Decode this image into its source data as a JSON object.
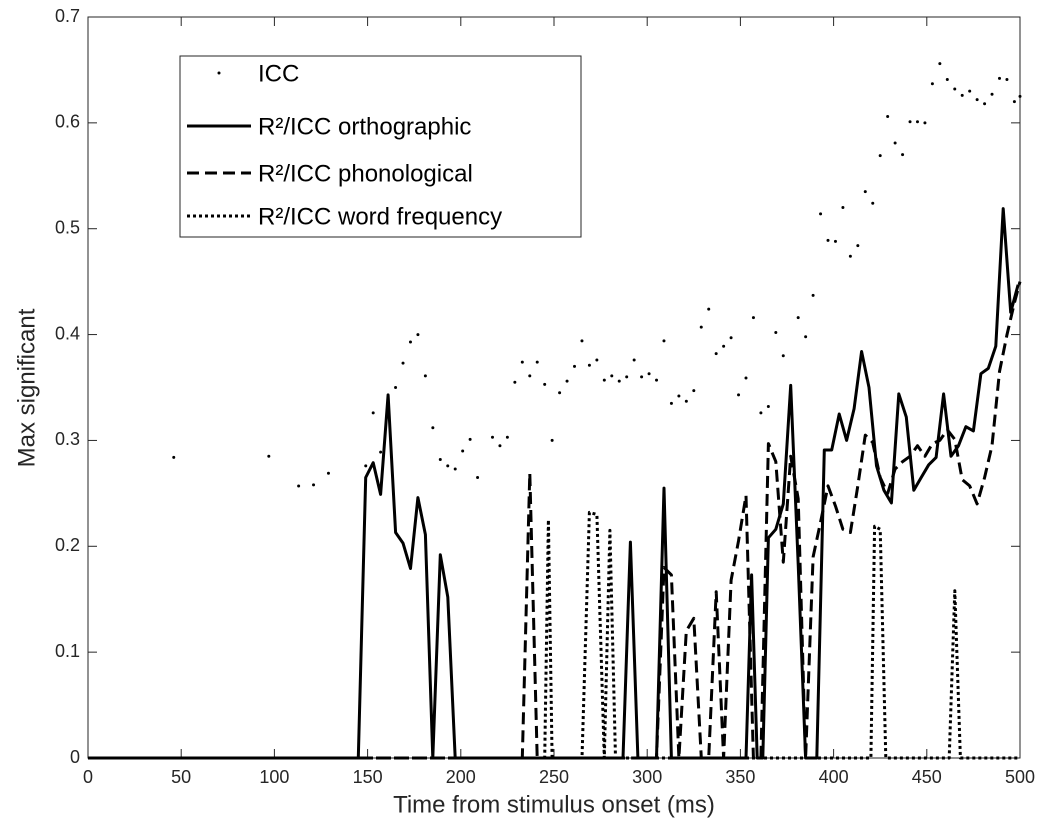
{
  "chart_data": {
    "type": "line",
    "x_label": "Time from stimulus onset (ms)",
    "y_label": "Max significant",
    "xlim": [
      0,
      500
    ],
    "xticks": [
      0,
      50,
      100,
      150,
      200,
      250,
      300,
      350,
      400,
      450,
      500
    ],
    "ylim": [
      0,
      0.7
    ],
    "yticks": [
      0,
      0.1,
      0.2,
      0.3,
      0.4,
      0.5,
      0.6,
      0.7
    ],
    "grid": false,
    "legend_position": "upper-left",
    "series": [
      {
        "name": "ICC",
        "color": "#000000",
        "style": "dots",
        "x": [
          46,
          97,
          113,
          121,
          129,
          149,
          153,
          157,
          161,
          165,
          169,
          173,
          177,
          181,
          185,
          189,
          193,
          197,
          201,
          205,
          209,
          217,
          221,
          225,
          229,
          233,
          237,
          241,
          245,
          249,
          253,
          257,
          261,
          265,
          269,
          273,
          277,
          281,
          285,
          289,
          293,
          297,
          301,
          305,
          309,
          313,
          317,
          321,
          325,
          329,
          333,
          337,
          341,
          345,
          349,
          353,
          357,
          361,
          365,
          369,
          373,
          377,
          381,
          385,
          389,
          393,
          397,
          401,
          405,
          409,
          413,
          417,
          421,
          425,
          429,
          433,
          437,
          441,
          445,
          449,
          453,
          457,
          461,
          465,
          469,
          473,
          477,
          481,
          485,
          489,
          493,
          497,
          500
        ],
        "values": [
          0.284,
          0.285,
          0.257,
          0.258,
          0.269,
          0.276,
          0.326,
          0.289,
          0.338,
          0.35,
          0.373,
          0.393,
          0.4,
          0.361,
          0.312,
          0.282,
          0.276,
          0.273,
          0.29,
          0.301,
          0.265,
          0.303,
          0.295,
          0.303,
          0.355,
          0.374,
          0.361,
          0.374,
          0.353,
          0.3,
          0.345,
          0.356,
          0.37,
          0.394,
          0.371,
          0.376,
          0.357,
          0.361,
          0.356,
          0.36,
          0.376,
          0.36,
          0.363,
          0.357,
          0.394,
          0.335,
          0.342,
          0.337,
          0.347,
          0.407,
          0.424,
          0.382,
          0.389,
          0.397,
          0.343,
          0.359,
          0.416,
          0.326,
          0.332,
          0.402,
          0.38,
          0.335,
          0.416,
          0.398,
          0.437,
          0.514,
          0.489,
          0.488,
          0.52,
          0.474,
          0.484,
          0.535,
          0.524,
          0.569,
          0.606,
          0.581,
          0.57,
          0.601,
          0.601,
          0.6,
          0.637,
          0.656,
          0.641,
          0.632,
          0.626,
          0.63,
          0.622,
          0.618,
          0.627,
          0.642,
          0.641,
          0.62,
          0.625
        ]
      },
      {
        "name": "R²/ICC orthographic",
        "color": "#000000",
        "style": "solid",
        "x": [
          0,
          145,
          149,
          153,
          157,
          161,
          165,
          169,
          173,
          177,
          181,
          185,
          189,
          193,
          197,
          287,
          291,
          295,
          305,
          309,
          313,
          353,
          356,
          359,
          362,
          365,
          369,
          373,
          377,
          381,
          385,
          389,
          391,
          395,
          399,
          403,
          407,
          411,
          415,
          419,
          423,
          427,
          431,
          435,
          439,
          443,
          447,
          451,
          455,
          459,
          463,
          467,
          471,
          475,
          479,
          483,
          487,
          491,
          495,
          499
        ],
        "values": [
          0,
          0,
          0.265,
          0.279,
          0.249,
          0.343,
          0.213,
          0.203,
          0.179,
          0.246,
          0.211,
          0,
          0.192,
          0.152,
          0,
          0,
          0.204,
          0,
          0,
          0.255,
          0,
          0,
          0.173,
          0,
          0,
          0.208,
          0.216,
          0.24,
          0.352,
          0.183,
          0,
          0,
          0,
          0.291,
          0.291,
          0.325,
          0.3,
          0.33,
          0.384,
          0.35,
          0.276,
          0.253,
          0.241,
          0.344,
          0.322,
          0.253,
          0.265,
          0.277,
          0.284,
          0.344,
          0.285,
          0.295,
          0.313,
          0.309,
          0.363,
          0.368,
          0.389,
          0.519,
          0.421,
          0.447
        ]
      },
      {
        "name": "R²/ICC phonological",
        "color": "#000000",
        "style": "dashed",
        "x": [
          0,
          233,
          237,
          241,
          305,
          309,
          313,
          317,
          321,
          325,
          329,
          333,
          337,
          341,
          345,
          349,
          353,
          357,
          361,
          365,
          369,
          373,
          377,
          381,
          385,
          389,
          393,
          397,
          401,
          405,
          409,
          413,
          417,
          421,
          425,
          429,
          433,
          437,
          441,
          445,
          449,
          453,
          457,
          461,
          465,
          469,
          473,
          477,
          481,
          485,
          489,
          493,
          497,
          500
        ],
        "values": [
          0,
          0,
          0.269,
          0,
          0,
          0.18,
          0.173,
          0,
          0.12,
          0.132,
          0,
          0,
          0.157,
          0,
          0.168,
          0.205,
          0.248,
          0,
          0,
          0.297,
          0.28,
          0.185,
          0.285,
          0.245,
          0,
          0.19,
          0.223,
          0.257,
          0.238,
          0.216,
          0.213,
          0.257,
          0.305,
          0.298,
          0.265,
          0.25,
          0.273,
          0.28,
          0.285,
          0.295,
          0.285,
          0.297,
          0.3,
          0.31,
          0.301,
          0.263,
          0.257,
          0.24,
          0.265,
          0.295,
          0.365,
          0.4,
          0.43,
          0.45
        ]
      },
      {
        "name": "R²/ICC word frequency",
        "color": "#000000",
        "style": "dotted",
        "x": [
          0,
          245,
          247,
          249,
          265,
          269,
          273,
          277,
          280,
          283,
          420,
          422,
          425,
          428,
          462,
          465,
          468,
          500
        ],
        "values": [
          0,
          0,
          0.225,
          0,
          0,
          0.232,
          0.23,
          0,
          0.215,
          0,
          0,
          0.219,
          0.216,
          0,
          0,
          0.158,
          0,
          0
        ]
      }
    ]
  }
}
